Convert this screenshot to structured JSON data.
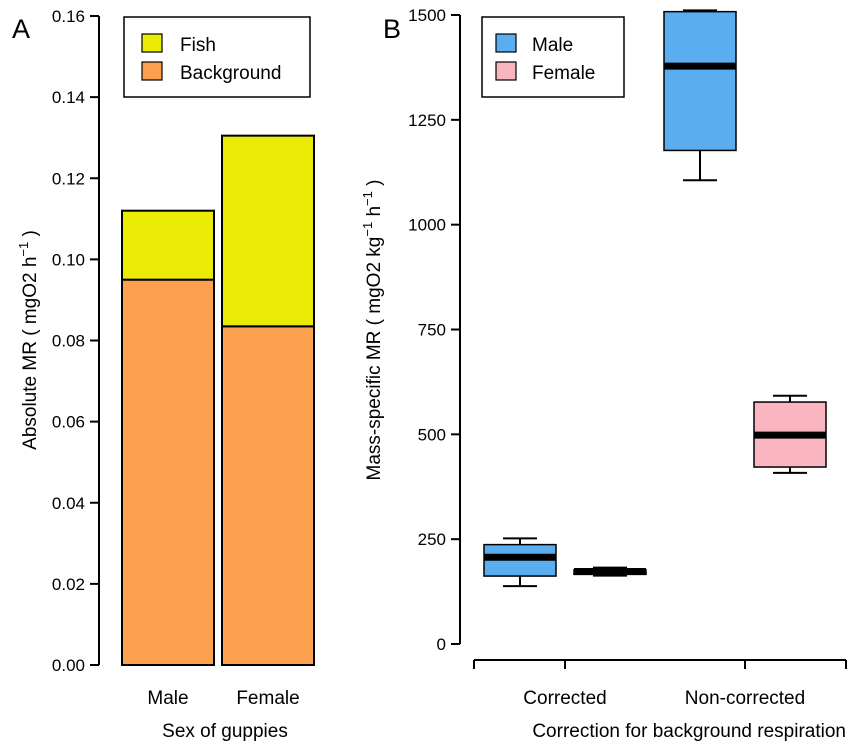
{
  "chart_data": [
    {
      "type": "bar",
      "stacked": true,
      "panel_label": "A",
      "xlabel": "Sex of guppies",
      "ylabel": "Absolute MR ( mgO2 h",
      "ylabel_sup": "−1",
      "ylabel_end": " )",
      "ylim": [
        0,
        0.16
      ],
      "yticks": [
        "0.00",
        "0.02",
        "0.04",
        "0.06",
        "0.08",
        "0.10",
        "0.12",
        "0.14",
        "0.16"
      ],
      "categories": [
        "Male",
        "Female"
      ],
      "series": [
        {
          "name": "Background",
          "color": "#fba04e",
          "values": [
            0.095,
            0.0835
          ]
        },
        {
          "name": "Fish",
          "color": "#eaec05",
          "values": [
            0.017,
            0.047
          ]
        }
      ],
      "legend": [
        {
          "label": "Fish",
          "color": "#eaec05"
        },
        {
          "label": "Background",
          "color": "#fba04e"
        }
      ],
      "legend_position": "top-left",
      "grid": false
    },
    {
      "type": "box",
      "panel_label": "B",
      "xlabel": "Correction for background respiration",
      "ylabel": "Mass-specific MR ( mgO2 kg",
      "ylabel_sup1": "−1",
      "ylabel_mid": " h",
      "ylabel_sup2": "−1",
      "ylabel_end": " )",
      "ylim": [
        0,
        1500
      ],
      "yticks": [
        "0",
        "250",
        "500",
        "750",
        "1000",
        "1250",
        "1500"
      ],
      "categories": [
        "Corrected",
        "Non-corrected"
      ],
      "series": [
        {
          "name": "Male",
          "color": "#5aaef0",
          "boxes": [
            {
              "min": 138,
              "q1": 162,
              "median": 207,
              "q3": 237,
              "max": 252
            },
            {
              "min": 1106,
              "q1": 1177,
              "median": 1378,
              "q3": 1508,
              "max": 1511
            }
          ]
        },
        {
          "name": "Female",
          "color": "#f9b5c0",
          "boxes": [
            {
              "min": 163,
              "q1": 166,
              "median": 173,
              "q3": 177,
              "max": 182
            },
            {
              "min": 408,
              "q1": 422,
              "median": 498,
              "q3": 577,
              "max": 592
            }
          ]
        }
      ],
      "legend": [
        {
          "label": "Male",
          "color": "#5aaef0"
        },
        {
          "label": "Female",
          "color": "#f9b5c0"
        }
      ],
      "legend_position": "top-left",
      "grid": false
    }
  ]
}
